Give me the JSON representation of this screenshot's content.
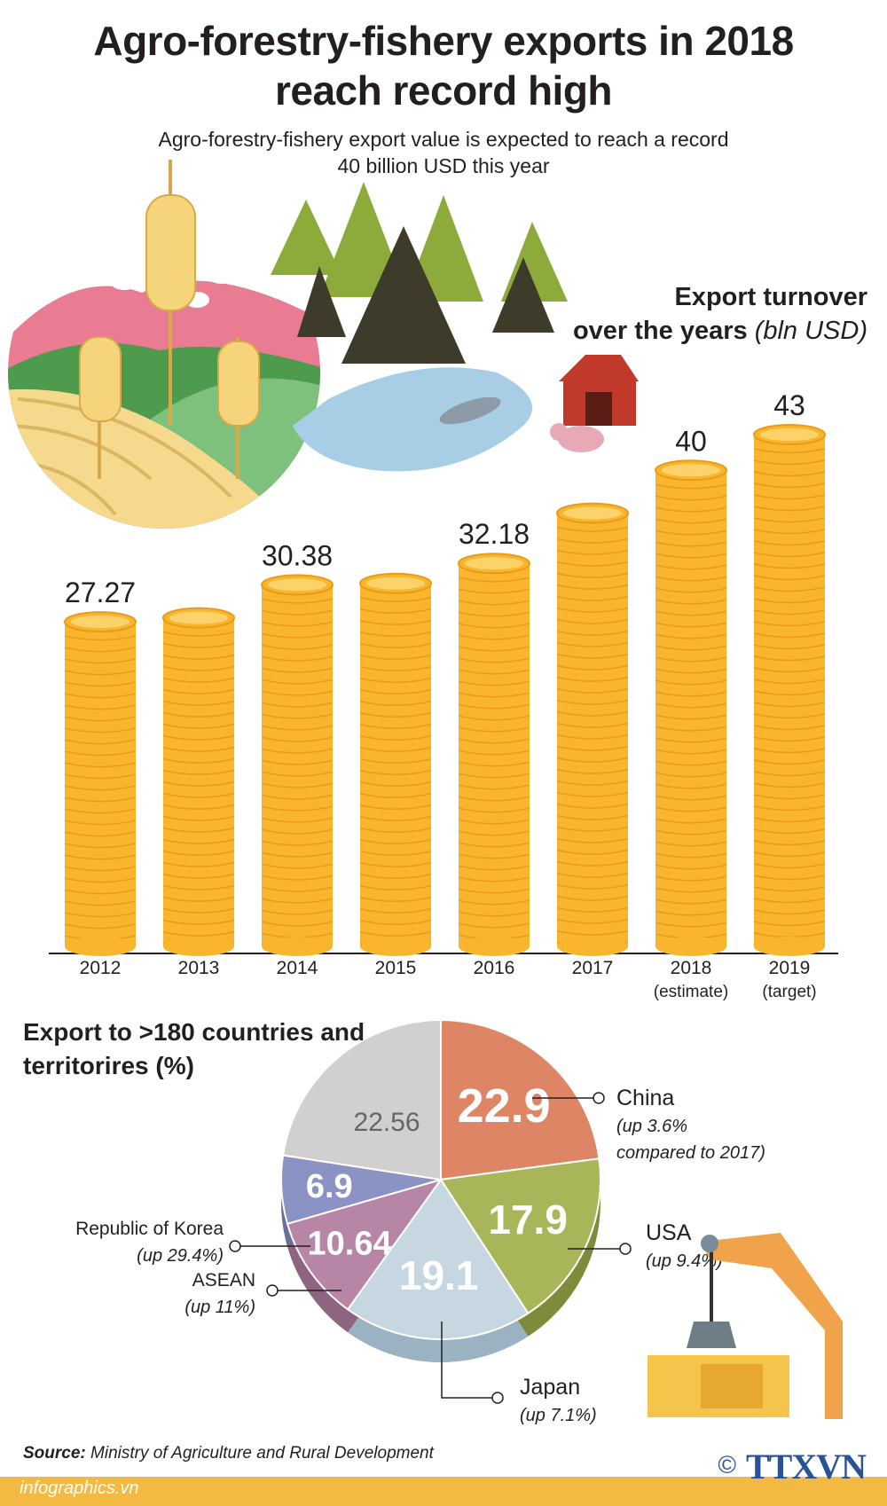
{
  "header": {
    "title_line1": "Agro-forestry-fishery exports in 2018",
    "title_line2": "reach record high",
    "subtitle_line1": "Agro-forestry-fishery export value is expected to reach a record",
    "subtitle_line2": "40 billion USD this year"
  },
  "bar_heading": {
    "line1": "Export turnover",
    "line2": "over the years",
    "unit": "(bln USD)"
  },
  "pie_heading": {
    "line1": "Export to  >180 countries and",
    "line2": "territorires (%)"
  },
  "colors": {
    "coin": "#f8b52d",
    "coin_edge": "#e89b16",
    "coin_top": "#fcd36b",
    "china": "#dd8565",
    "usa": "#a8b558",
    "japan": "#c6d7e2",
    "asean": "#b786a6",
    "korea": "#8b93c4",
    "other": "#d1cfcf",
    "footer": "#f4b940",
    "brand": "#2a5298"
  },
  "chart_data": [
    {
      "type": "bar",
      "categories": [
        "2012",
        "2013",
        "2014",
        "2015",
        "2016",
        "2017",
        "2018",
        "2019"
      ],
      "category_notes": [
        "",
        "",
        "",
        "",
        "",
        "",
        "(estimate)",
        "(target)"
      ],
      "values": [
        27.27,
        27.6,
        30.38,
        30.5,
        32.18,
        36.4,
        40,
        43
      ],
      "value_labels": [
        "27.27",
        "",
        "30.38",
        "",
        "32.18",
        "",
        "40",
        "43"
      ],
      "title": "Export turnover over the years (bln USD)",
      "ylim": [
        0,
        43
      ]
    },
    {
      "type": "pie",
      "title": "Export to  >180 countries and territorires (%)",
      "slices": [
        {
          "label": "China",
          "value": 22.9,
          "value_label": "22.9",
          "note": "(up 3.6%",
          "note2": "compared to 2017)"
        },
        {
          "label": "USA",
          "value": 17.9,
          "value_label": "17.9",
          "note": "(up 9.4%)",
          "note2": ""
        },
        {
          "label": "Japan",
          "value": 19.1,
          "value_label": "19.1",
          "note": "(up 7.1%)",
          "note2": ""
        },
        {
          "label": "ASEAN",
          "value": 10.64,
          "value_label": "10.64",
          "note": "(up 11%)",
          "note2": ""
        },
        {
          "label": "Republic of Korea",
          "value": 6.9,
          "value_label": "6.9",
          "note": "(up 29.4%)",
          "note2": ""
        },
        {
          "label": "",
          "value": 22.56,
          "value_label": "22.56",
          "note": "",
          "note2": ""
        }
      ]
    }
  ],
  "footer": {
    "source_label": "Source:",
    "source_text": "Ministry of Agriculture and Rural Development",
    "site": "infographics.vn",
    "copyright": "©",
    "logo": "TTXVN"
  }
}
